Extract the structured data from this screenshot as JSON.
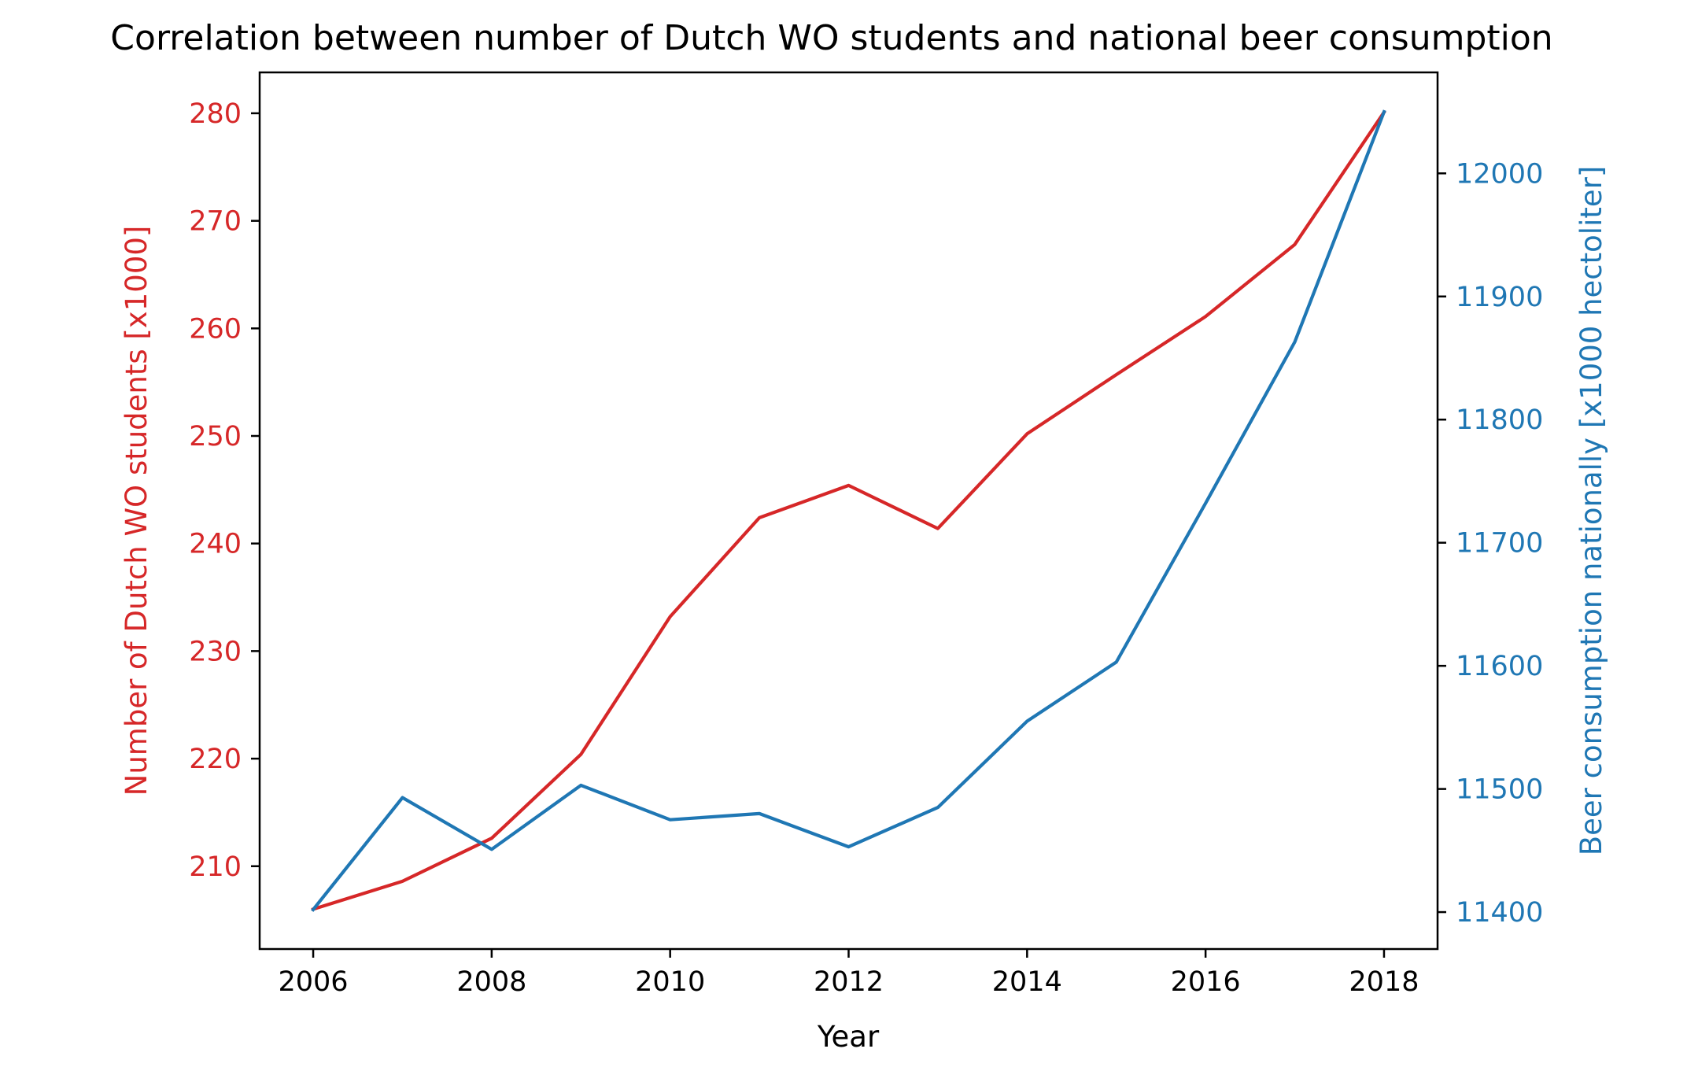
{
  "chart_data": {
    "type": "line",
    "title": "Correlation between number of Dutch WO students and national beer consumption",
    "xlabel": "Year",
    "ylabel_left": "Number of Dutch WO students [x1000]",
    "ylabel_right": "Beer consumption nationally [x1000 hectoliter]",
    "x": [
      2006,
      2007,
      2008,
      2009,
      2010,
      2011,
      2012,
      2013,
      2014,
      2015,
      2016,
      2017,
      2018
    ],
    "xlim": [
      2005.4,
      2018.6
    ],
    "xticks": [
      2006,
      2008,
      2010,
      2012,
      2014,
      2016,
      2018
    ],
    "grid": false,
    "legend": "none",
    "series": [
      {
        "axis": "left",
        "color": "#d62728",
        "values": [
          206.0,
          208.6,
          212.6,
          220.4,
          233.2,
          242.4,
          245.4,
          241.4,
          250.2,
          255.7,
          261.1,
          267.8,
          280.1
        ]
      },
      {
        "axis": "right",
        "color": "#1f77b4",
        "values": [
          11402,
          11493,
          11451,
          11503,
          11475,
          11480,
          11453,
          11485,
          11555,
          11603,
          11732,
          11863,
          12050
        ]
      }
    ],
    "ylim_left": [
      202.3,
      283.8
    ],
    "yticks_left": [
      210,
      220,
      230,
      240,
      250,
      260,
      270,
      280
    ],
    "ylim_right": [
      11370,
      12082
    ],
    "yticks_right": [
      11400,
      11500,
      11600,
      11700,
      11800,
      11900,
      12000
    ],
    "left_axis_color": "#d62728",
    "right_axis_color": "#1f77b4"
  }
}
